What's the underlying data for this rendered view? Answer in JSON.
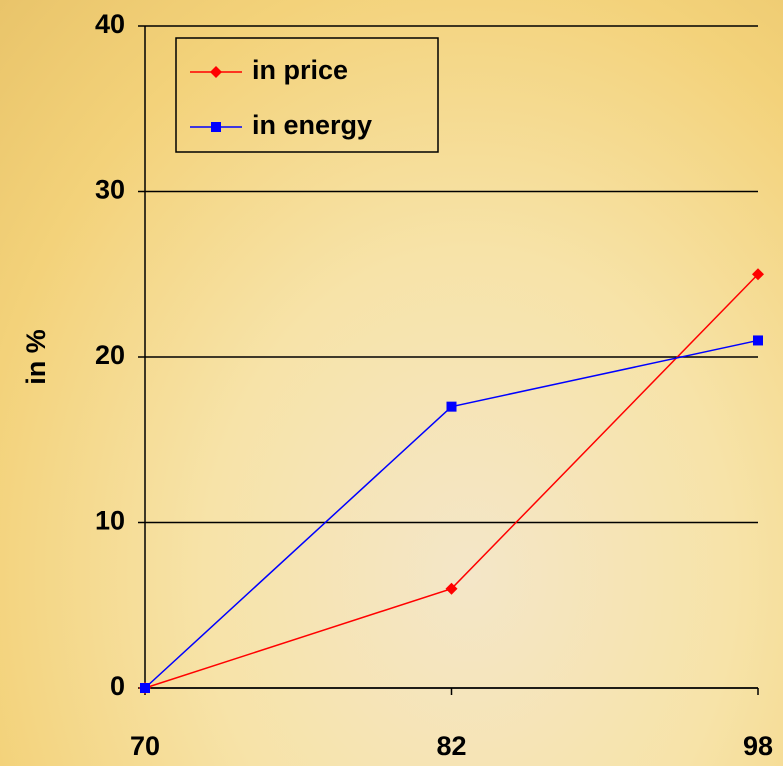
{
  "chart_data": {
    "type": "line",
    "y_label": "in %",
    "categories": [
      "70",
      "82",
      "98"
    ],
    "series": [
      {
        "name": "in price",
        "color": "#ff0000",
        "marker": "diamond",
        "values": [
          0,
          6,
          25
        ]
      },
      {
        "name": "in energy",
        "color": "#0000ff",
        "marker": "square",
        "values": [
          0,
          17,
          21
        ]
      }
    ],
    "ylim": [
      0,
      40
    ],
    "yticks": [
      0,
      10,
      20,
      30,
      40
    ],
    "grid": true,
    "legend": "top-left"
  }
}
